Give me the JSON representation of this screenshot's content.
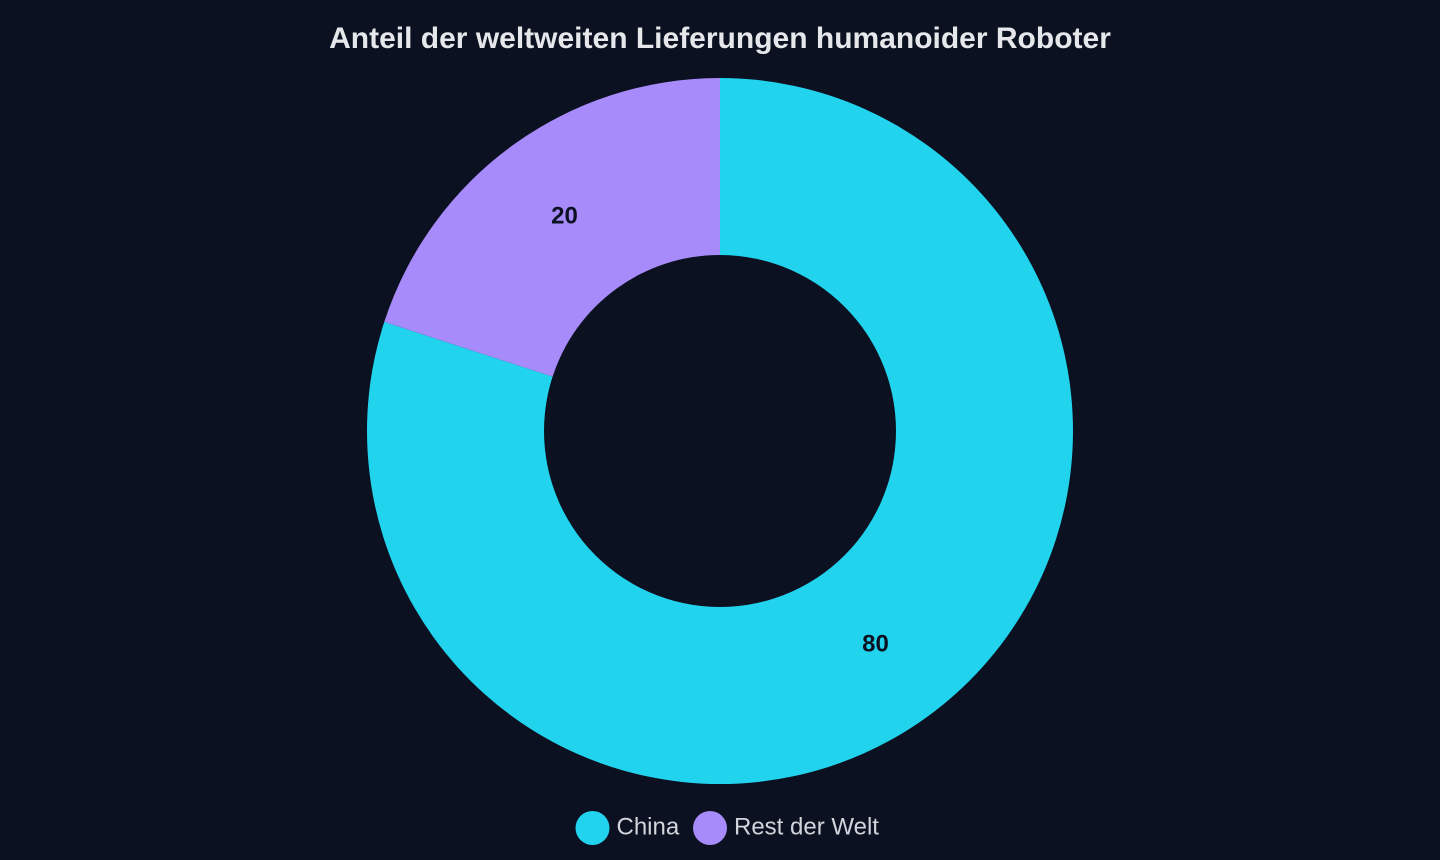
{
  "chart_data": {
    "type": "donut",
    "title": "Anteil der weltweiten Lieferungen humanoider Roboter",
    "categories": [
      "China",
      "Rest der Welt"
    ],
    "values": [
      80,
      20
    ],
    "colors": [
      "#22d3ee",
      "#a78bfa"
    ],
    "legend": "bottom"
  }
}
